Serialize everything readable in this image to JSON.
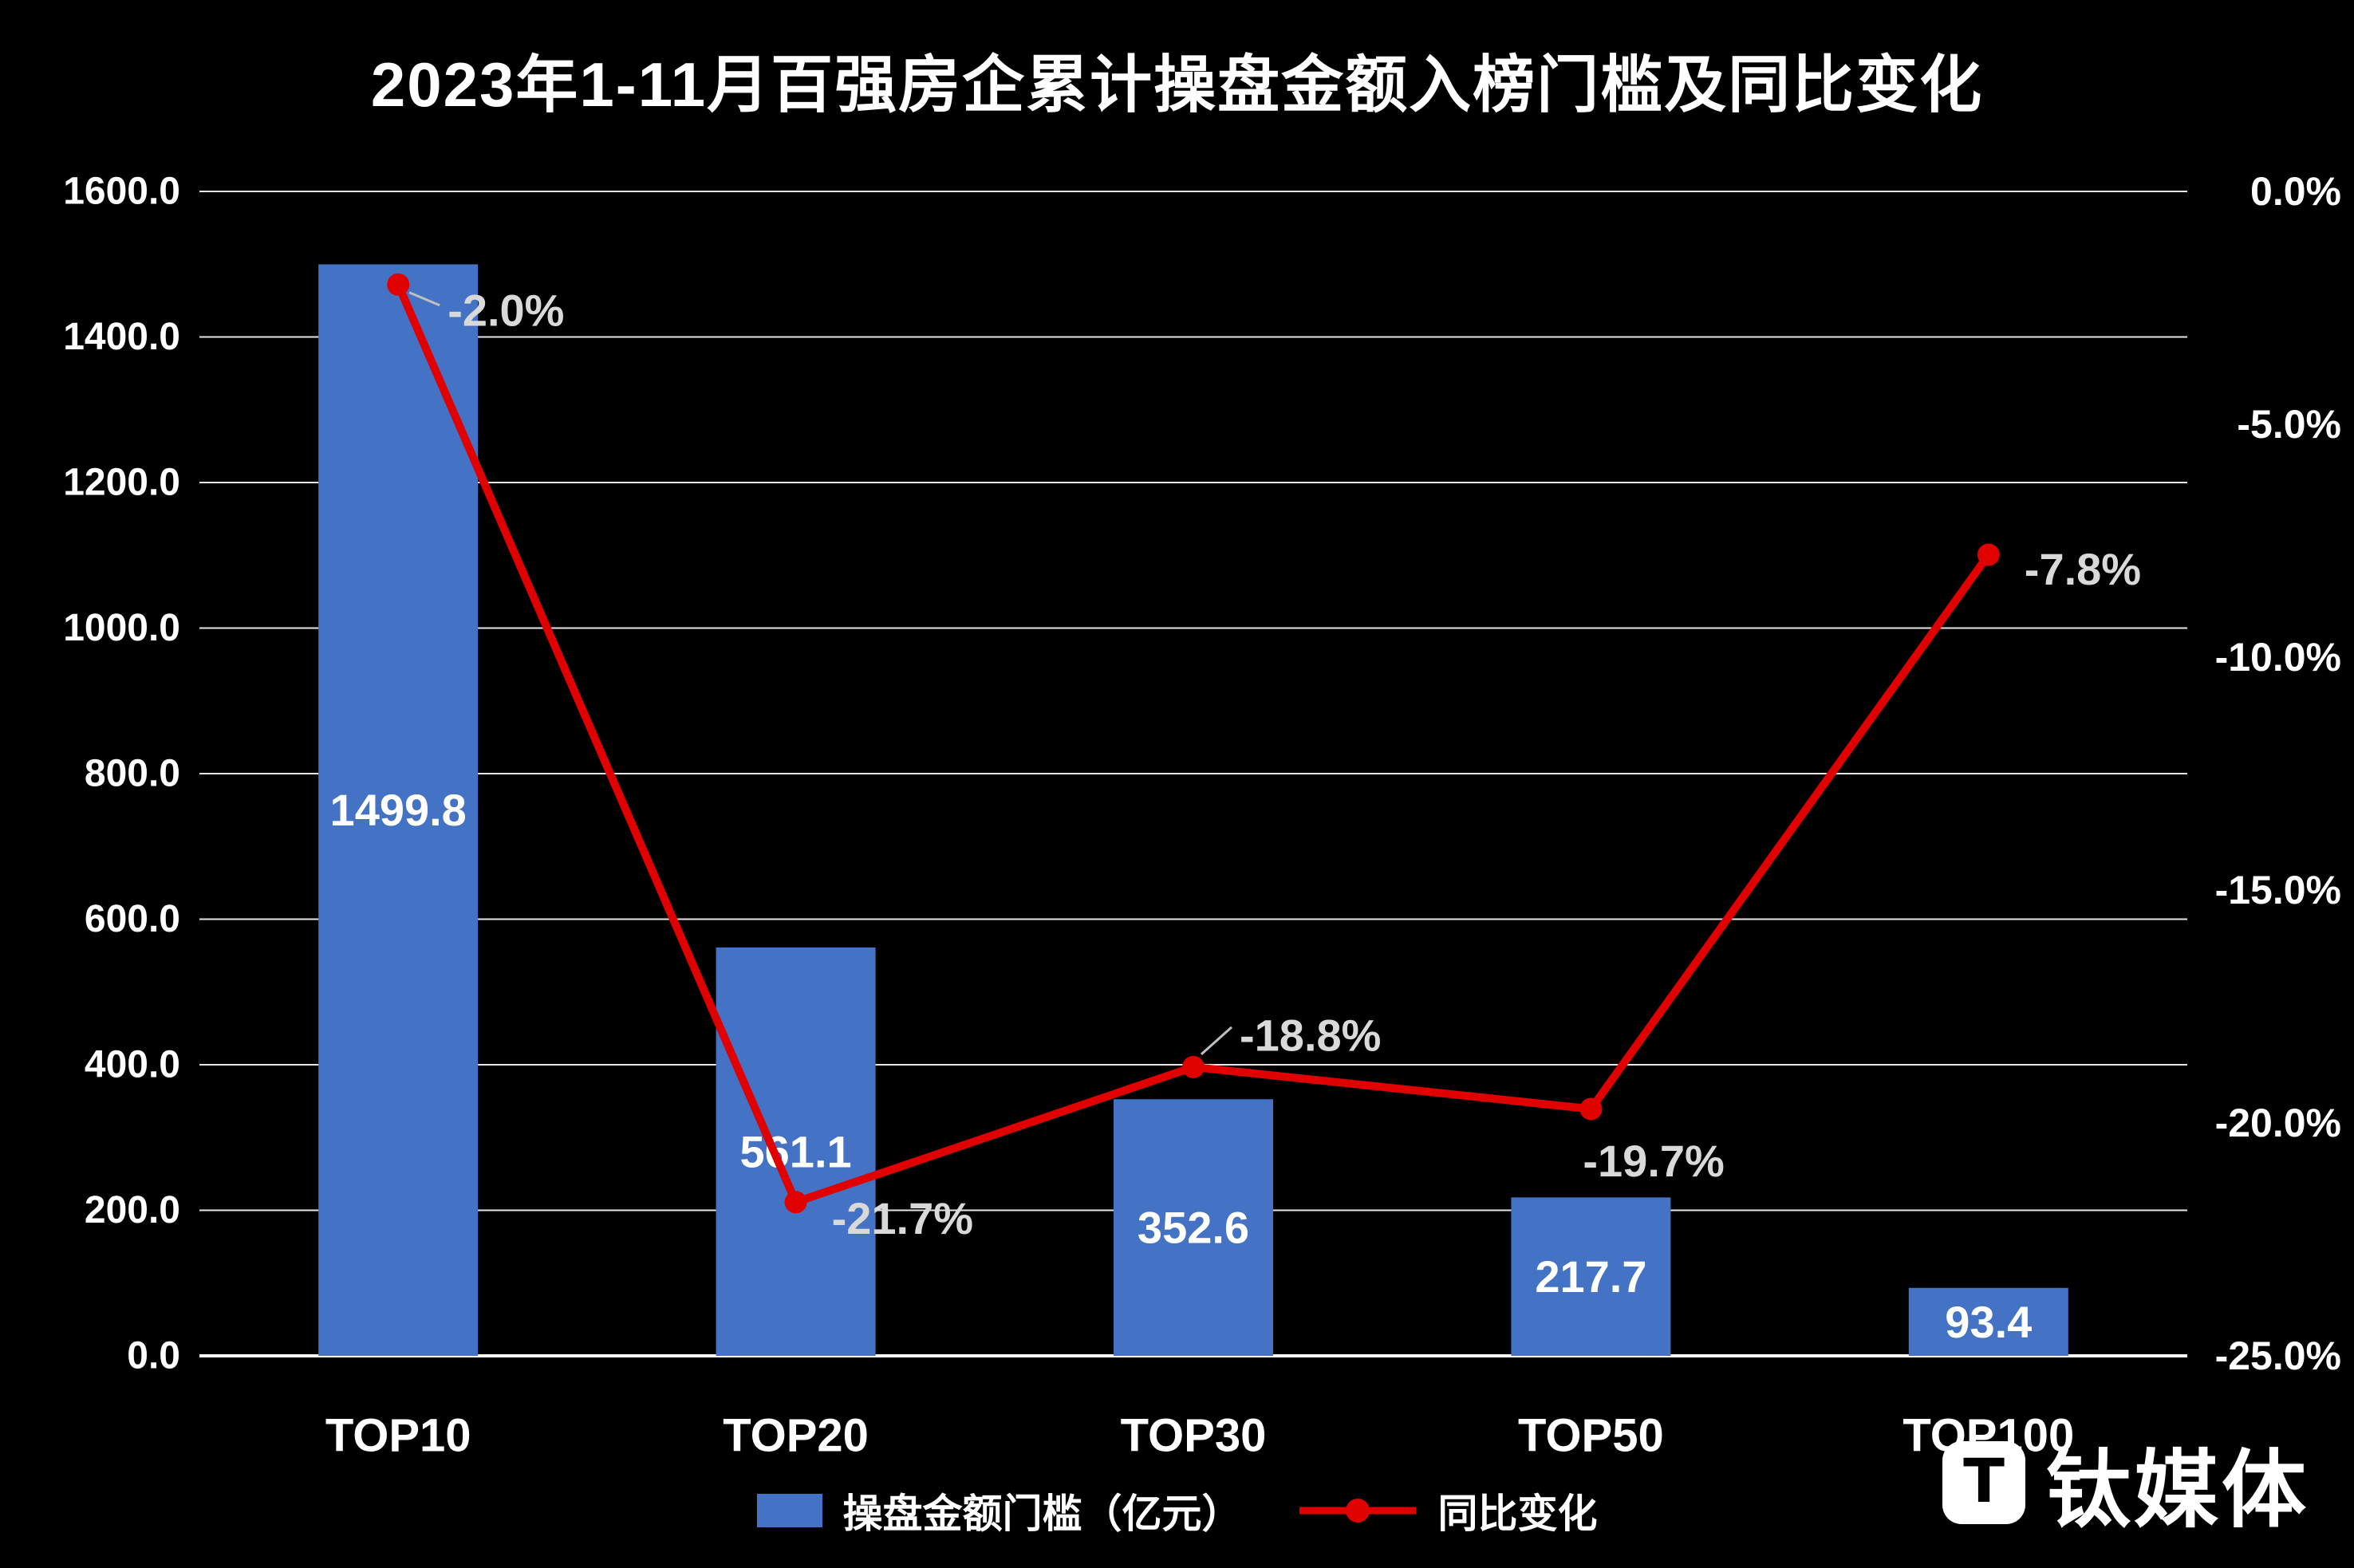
{
  "chart_data": {
    "type": "combo-bar-line",
    "title": "2023年1-11月百强房企累计操盘金额入榜门槛及同比变化",
    "categories": [
      "TOP10",
      "TOP20",
      "TOP30",
      "TOP50",
      "TOP100"
    ],
    "series": [
      {
        "name": "操盘金额门槛（亿元）",
        "type": "bar",
        "axis": "left",
        "color": "#4472C4",
        "values": [
          1499.8,
          561.1,
          352.6,
          217.7,
          93.4
        ],
        "data_labels": [
          "1499.8",
          "561.1",
          "352.6",
          "217.7",
          "93.4"
        ]
      },
      {
        "name": "同比变化",
        "type": "line",
        "axis": "right",
        "color": "#E00000",
        "values": [
          -2.0,
          -21.7,
          -18.8,
          -19.7,
          -7.8
        ],
        "data_labels": [
          "-2.0%",
          "-21.7%",
          "-18.8%",
          "-19.7%",
          "-7.8%"
        ]
      }
    ],
    "left_axis": {
      "min": 0,
      "max": 1600,
      "step": 200,
      "tick_labels": [
        "0.0",
        "200.0",
        "400.0",
        "600.0",
        "800.0",
        "1000.0",
        "1200.0",
        "1400.0",
        "1600.0"
      ]
    },
    "right_axis": {
      "min": -25,
      "max": 0,
      "step": 5,
      "tick_labels": [
        "0.0%",
        "-5.0%",
        "-10.0%",
        "-15.0%",
        "-20.0%",
        "-25.0%"
      ]
    },
    "grid": true,
    "legend_position": "bottom-center"
  },
  "watermark": {
    "logo_text": "T",
    "brand": "钛媒体"
  },
  "colors": {
    "background": "#000000",
    "text": "#FFFFFF",
    "grid": "#FFFFFF",
    "bar": "#4472C4",
    "line": "#E00000",
    "callout_label": "#D9D9D9",
    "leader": "#BFBFBF"
  }
}
